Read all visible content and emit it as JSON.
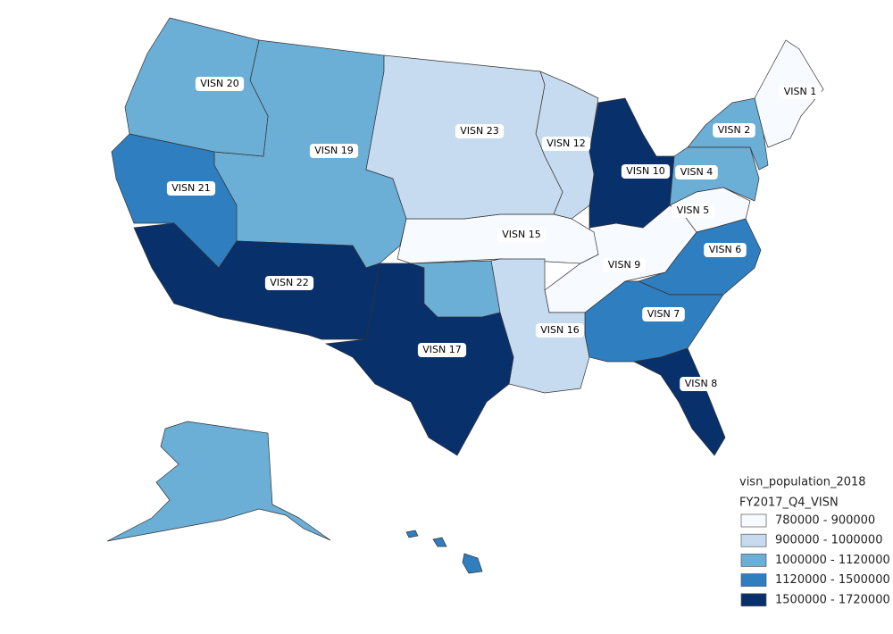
{
  "map": {
    "regions": [
      {
        "label": "VISN 1",
        "color": "#f7fbff"
      },
      {
        "label": "VISN 2",
        "color": "#6baed6"
      },
      {
        "label": "VISN 4",
        "color": "#6baed6"
      },
      {
        "label": "VISN 5",
        "color": "#f7fbff"
      },
      {
        "label": "VISN 6",
        "color": "#2f7ec0"
      },
      {
        "label": "VISN 7",
        "color": "#2f7ec0"
      },
      {
        "label": "VISN 8",
        "color": "#08306b"
      },
      {
        "label": "VISN 9",
        "color": "#f7fbff"
      },
      {
        "label": "VISN 10",
        "color": "#08306b"
      },
      {
        "label": "VISN 12",
        "color": "#c6dbef"
      },
      {
        "label": "VISN 15",
        "color": "#f7fbff"
      },
      {
        "label": "VISN 16",
        "color": "#c6dbef"
      },
      {
        "label": "VISN 17",
        "color": "#08306b"
      },
      {
        "label": "VISN 19",
        "color": "#6baed6"
      },
      {
        "label": "VISN 20",
        "color": "#6baed6"
      },
      {
        "label": "VISN 21",
        "color": "#2f7ec0"
      },
      {
        "label": "VISN 22",
        "color": "#08306b"
      },
      {
        "label": "VISN 23",
        "color": "#c6dbef"
      }
    ],
    "legend": {
      "title": "visn_population_2018",
      "subtitle": "FY2017_Q4_VISN",
      "items": [
        {
          "label": "780000 - 900000",
          "color": "#f7fbff"
        },
        {
          "label": "900000 - 1000000",
          "color": "#c6dbef"
        },
        {
          "label": "1000000 - 1120000",
          "color": "#6baed6"
        },
        {
          "label": "1120000 - 1500000",
          "color": "#2f7ec0"
        },
        {
          "label": "1500000 - 1720000",
          "color": "#08306b"
        }
      ]
    }
  }
}
